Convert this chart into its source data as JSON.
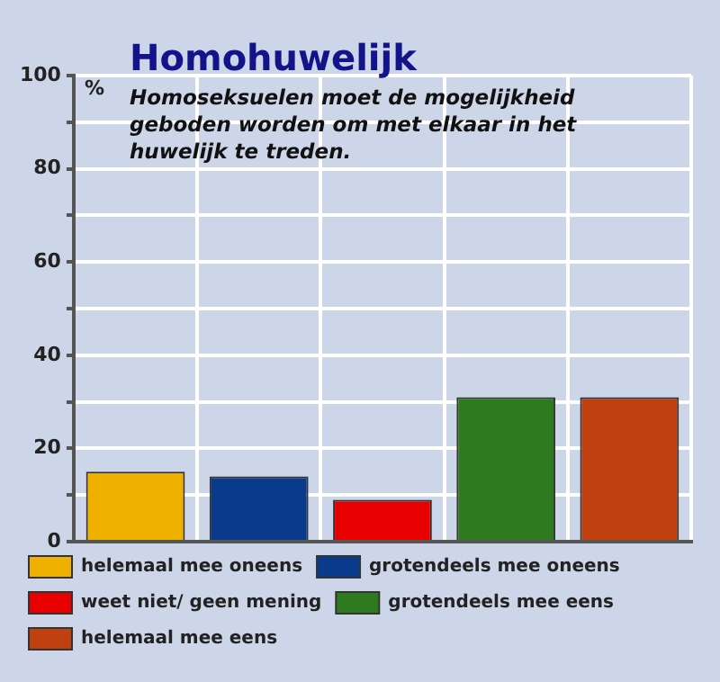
{
  "chart_data": {
    "type": "bar",
    "title": "Homohuwelijk",
    "subtitle": "Homoseksuelen moet de mogelijkheid geboden worden om met elkaar in het huwelijk te treden.",
    "ylabel": "%",
    "categories": [
      null,
      null,
      null,
      null,
      null
    ],
    "series": [
      {
        "name": "helemaal mee oneens",
        "color": "#f0b000",
        "values": [
          15,
          null,
          null,
          null,
          null
        ]
      },
      {
        "name": "grotendeels mee oneens",
        "color": "#0a3a8c",
        "values": [
          null,
          14,
          null,
          null,
          null
        ]
      },
      {
        "name": "weet niet/ geen mening",
        "color": "#e80000",
        "values": [
          null,
          null,
          9,
          null,
          null
        ]
      },
      {
        "name": "grotendeels mee eens",
        "color": "#2e7a1e",
        "values": [
          null,
          null,
          null,
          31,
          null
        ]
      },
      {
        "name": "helemaal mee eens",
        "color": "#c04010",
        "values": [
          null,
          null,
          null,
          null,
          31
        ]
      }
    ],
    "ylim": [
      0,
      100
    ],
    "yticks": [
      0,
      {
        "value": 10,
        "label": null
      },
      20,
      {
        "value": 30,
        "label": null
      },
      40,
      {
        "value": 50,
        "label": null
      },
      60,
      {
        "value": 70,
        "label": null
      },
      80,
      {
        "value": 90,
        "label": null
      },
      100
    ],
    "grid": true,
    "legend": "bottom",
    "tick_labels": "y"
  }
}
